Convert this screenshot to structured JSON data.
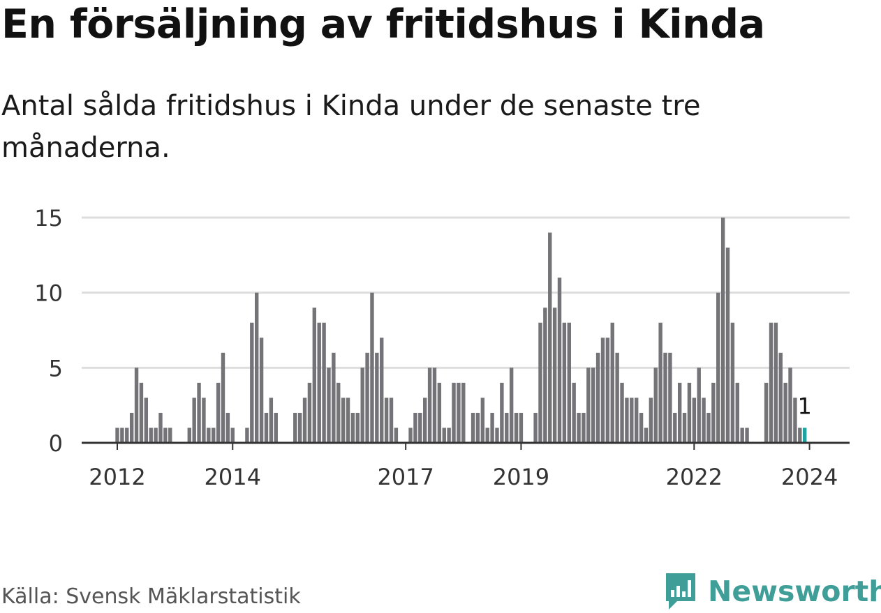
{
  "title": "En försäljning av fritidshus i Kinda",
  "subtitle": "Antal sålda fritidshus i Kinda under de senaste tre månaderna.",
  "source": "Källa: Svensk Mäklarstatistik",
  "brand": {
    "name": "Newsworthy",
    "icon": "newsworthy-logo-icon",
    "color": "#3f9e97"
  },
  "colors": {
    "bar": "#747378",
    "highlight": "#1fa3a0",
    "grid": "#dddddd",
    "axis": "#333333"
  },
  "chart_data": {
    "type": "bar",
    "title": "En försäljning av fritidshus i Kinda",
    "xlabel": "",
    "ylabel": "",
    "ylim": [
      0,
      15
    ],
    "yticks": [
      0,
      5,
      10,
      15
    ],
    "start": "2012-01",
    "xticks": [
      {
        "label": "2012",
        "index": 0
      },
      {
        "label": "2014",
        "index": 24
      },
      {
        "label": "2017",
        "index": 60
      },
      {
        "label": "2019",
        "index": 84
      },
      {
        "label": "2022",
        "index": 120
      },
      {
        "label": "2024",
        "index": 144
      }
    ],
    "values": [
      1,
      1,
      1,
      2,
      5,
      4,
      3,
      1,
      1,
      2,
      1,
      1,
      0,
      0,
      0,
      1,
      3,
      4,
      3,
      1,
      1,
      4,
      6,
      2,
      1,
      0,
      0,
      1,
      8,
      10,
      7,
      2,
      3,
      2,
      0,
      0,
      0,
      2,
      2,
      3,
      4,
      9,
      8,
      8,
      5,
      6,
      4,
      3,
      3,
      2,
      2,
      5,
      6,
      10,
      6,
      7,
      3,
      3,
      1,
      0,
      0,
      1,
      2,
      2,
      3,
      5,
      5,
      4,
      1,
      1,
      4,
      4,
      4,
      0,
      2,
      2,
      3,
      1,
      2,
      1,
      4,
      2,
      5,
      2,
      2,
      0,
      0,
      2,
      8,
      9,
      14,
      9,
      11,
      8,
      8,
      4,
      2,
      2,
      5,
      5,
      6,
      7,
      7,
      8,
      6,
      4,
      3,
      3,
      3,
      2,
      1,
      3,
      5,
      8,
      6,
      6,
      2,
      4,
      2,
      4,
      3,
      5,
      3,
      2,
      4,
      10,
      15,
      13,
      8,
      4,
      1,
      1,
      0,
      0,
      0,
      4,
      8,
      8,
      6,
      4,
      5,
      3,
      1,
      1
    ],
    "highlight": {
      "index": 143,
      "value": 1,
      "label": "1"
    }
  }
}
